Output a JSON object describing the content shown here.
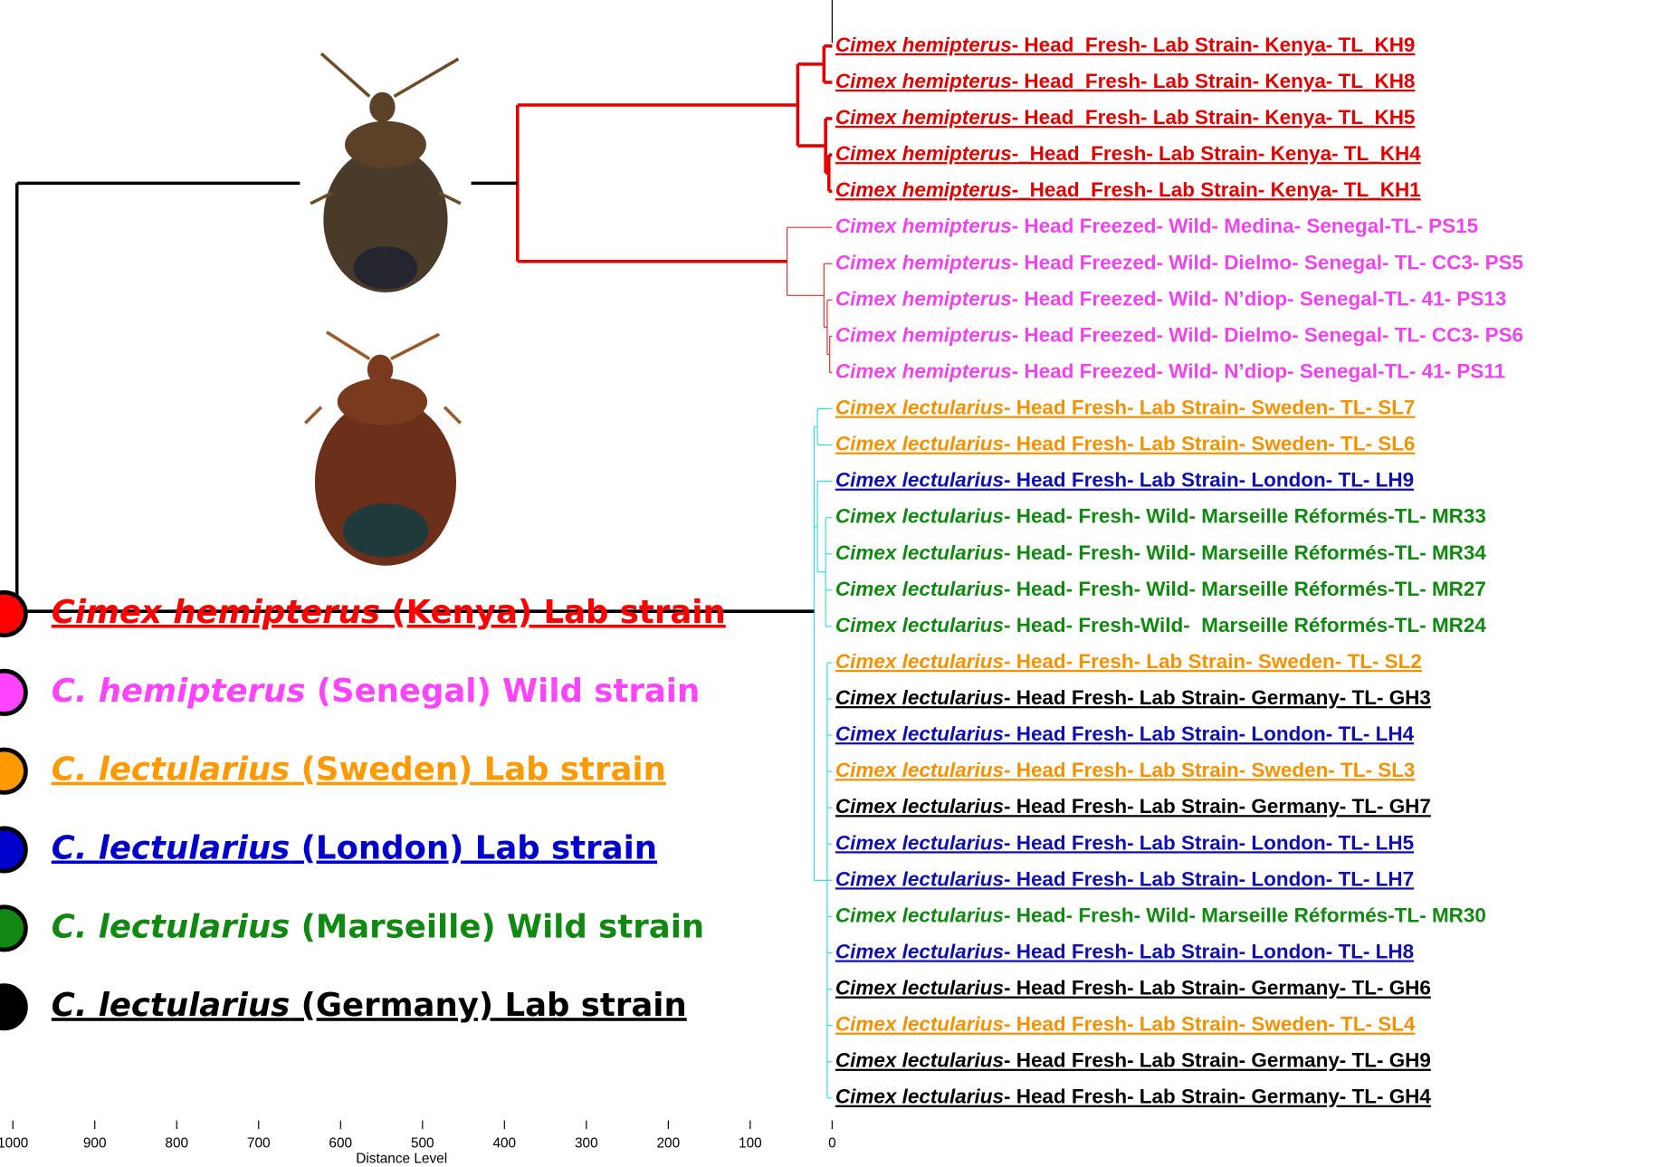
{
  "chart_data": {
    "type": "dendrogram",
    "xlabel": "Distance Level",
    "xlim": [
      1000,
      0
    ],
    "xticks": [
      1000,
      900,
      800,
      700,
      600,
      500,
      400,
      300,
      200,
      100,
      0
    ],
    "leaves": [
      {
        "species": "Cimex hemipterus",
        "rest": "- Head_Fresh- Lab Strain- Kenya- TL_KH9",
        "color": "#e00000",
        "underline": true
      },
      {
        "species": "Cimex hemipterus",
        "rest": "- Head_Fresh- Lab Strain- Kenya- TL_KH8",
        "color": "#e00000",
        "underline": true
      },
      {
        "species": "Cimex hemipterus",
        "rest": "- Head_Fresh- Lab Strain- Kenya- TL_KH5",
        "color": "#e00000",
        "underline": true
      },
      {
        "species": "Cimex hemipterus",
        "rest": "-_Head_Fresh- Lab Strain- Kenya- TL_KH4",
        "color": "#e00000",
        "underline": true
      },
      {
        "species": "Cimex hemipterus",
        "rest": "-_Head_Fresh- Lab Strain- Kenya- TL_KH1",
        "color": "#e00000",
        "underline": true
      },
      {
        "species": "Cimex hemipterus",
        "rest": "- Head Freezed- Wild- Medina- Senegal-TL- PS15",
        "color": "#ee44ee",
        "underline": false
      },
      {
        "species": "Cimex hemipterus",
        "rest": "- Head Freezed- Wild- Dielmo- Senegal- TL- CC3- PS5",
        "color": "#ee44ee",
        "underline": false
      },
      {
        "species": "Cimex hemipterus",
        "rest": "- Head Freezed- Wild- N’diop- Senegal-TL- 41- PS13",
        "color": "#ee44ee",
        "underline": false
      },
      {
        "species": "Cimex hemipterus",
        "rest": "- Head Freezed- Wild- Dielmo- Senegal- TL- CC3- PS6",
        "color": "#ee44ee",
        "underline": false
      },
      {
        "species": "Cimex hemipterus",
        "rest": "- Head Freezed- Wild- N’diop- Senegal-TL- 41- PS11",
        "color": "#ee44ee",
        "underline": false
      },
      {
        "species": "Cimex lectularius",
        "rest": "- Head Fresh- Lab Strain- Sweden- TL- SL7",
        "color": "#f39200",
        "underline": true
      },
      {
        "species": "Cimex lectularius",
        "rest": "- Head Fresh- Lab Strain- Sweden- TL- SL6",
        "color": "#f39200",
        "underline": true
      },
      {
        "species": "Cimex lectularius",
        "rest": "- Head Fresh- Lab Strain- London- TL- LH9",
        "color": "#1010b0",
        "underline": true
      },
      {
        "species": "Cimex lectularius",
        "rest": "- Head- Fresh- Wild- Marseille Réformés-TL- MR33",
        "color": "#118811",
        "underline": false
      },
      {
        "species": "Cimex lectularius",
        "rest": "- Head- Fresh- Wild- Marseille Réformés-TL- MR34",
        "color": "#118811",
        "underline": false
      },
      {
        "species": "Cimex lectularius",
        "rest": "- Head- Fresh- Wild- Marseille Réformés-TL- MR27",
        "color": "#118811",
        "underline": false
      },
      {
        "species": "Cimex lectularius",
        "rest": "- Head- Fresh-Wild-  Marseille Réformés-TL- MR24",
        "color": "#118811",
        "underline": false
      },
      {
        "species": "Cimex lectularius",
        "rest": "- Head- Fresh- Lab Strain- Sweden- TL- SL2",
        "color": "#f39200",
        "underline": true
      },
      {
        "species": "Cimex lectularius",
        "rest": "- Head Fresh- Lab Strain- Germany- TL- GH3",
        "color": "#000000",
        "underline": true
      },
      {
        "species": "Cimex lectularius",
        "rest": "- Head Fresh- Lab Strain- London- TL- LH4",
        "color": "#1010b0",
        "underline": true
      },
      {
        "species": "Cimex lectularius",
        "rest": "- Head Fresh- Lab Strain- Sweden- TL- SL3",
        "color": "#f39200",
        "underline": true
      },
      {
        "species": "Cimex lectularius",
        "rest": "- Head Fresh- Lab Strain- Germany- TL- GH7",
        "color": "#000000",
        "underline": true
      },
      {
        "species": "Cimex lectularius",
        "rest": "- Head Fresh- Lab Strain- London- TL- LH5",
        "color": "#1010b0",
        "underline": true
      },
      {
        "species": "Cimex lectularius",
        "rest": "- Head Fresh- Lab Strain- London- TL- LH7",
        "color": "#1010b0",
        "underline": true
      },
      {
        "species": "Cimex lectularius",
        "rest": "- Head- Fresh- Wild- Marseille Réformés-TL- MR30",
        "color": "#118811",
        "underline": false
      },
      {
        "species": "Cimex lectularius",
        "rest": "- Head Fresh- Lab Strain- London- TL- LH8",
        "color": "#1010b0",
        "underline": true
      },
      {
        "species": "Cimex lectularius",
        "rest": "- Head Fresh- Lab Strain- Germany- TL- GH6",
        "color": "#000000",
        "underline": true
      },
      {
        "species": "Cimex lectularius",
        "rest": "- Head Fresh- Lab Strain- Sweden- TL- SL4",
        "color": "#f39200",
        "underline": true
      },
      {
        "species": "Cimex lectularius",
        "rest": "- Head Fresh- Lab Strain- Germany- TL- GH9",
        "color": "#000000",
        "underline": true
      },
      {
        "species": "Cimex lectularius",
        "rest": "- Head Fresh- Lab Strain- Germany- TL- GH4",
        "color": "#000000",
        "underline": true
      }
    ],
    "tree": {
      "height": 995,
      "color": "#000000",
      "bold": true,
      "children": [
        {
          "height": 384,
          "color": "#e00000",
          "bold": true,
          "children": [
            {
              "height": 42,
              "color": "#e00000",
              "bold": true,
              "children": [
                {
                  "height": 10,
                  "color": "#e00000",
                  "bold": true,
                  "children": [
                    0,
                    1
                  ]
                },
                {
                  "height": 8,
                  "color": "#e00000",
                  "bold": true,
                  "children": [
                    2,
                    {
                      "height": 4,
                      "color": "#e00000",
                      "bold": true,
                      "children": [
                        3,
                        4
                      ]
                    }
                  ]
                }
              ]
            },
            {
              "height": 55,
              "color": "#e03030",
              "bold": false,
              "children": [
                5,
                {
                  "height": 10,
                  "color": "#e03030",
                  "bold": false,
                  "children": [
                    6,
                    {
                      "height": 6,
                      "color": "#e03030",
                      "bold": false,
                      "children": [
                        7,
                        {
                          "height": 3,
                          "color": "#e03030",
                          "bold": false,
                          "children": [
                            8,
                            9
                          ]
                        }
                      ]
                    }
                  ]
                }
              ]
            }
          ]
        },
        {
          "height": 22,
          "color": "#33dddd",
          "bold": false,
          "children": [
            {
              "height": 18,
              "color": "#33dddd",
              "bold": false,
              "children": [
                10,
                11
              ]
            },
            {
              "height": 18,
              "color": "#33dddd",
              "bold": false,
              "children": [
                12,
                {
                  "height": 8,
                  "color": "#33dddd",
                  "bold": false,
                  "children": [
                    13,
                    14,
                    15,
                    16
                  ]
                }
              ]
            },
            {
              "height": 6,
              "color": "#33dddd",
              "bold": false,
              "children": [
                17,
                18,
                19,
                20,
                21,
                22,
                23,
                24,
                25,
                26,
                27,
                28,
                29
              ]
            }
          ]
        }
      ]
    },
    "legend": [
      {
        "italic": "Cimex hemipterus",
        "rest": " (Kenya) Lab strain",
        "color": "#ff0000",
        "underline": true
      },
      {
        "italic": "C. hemipterus",
        "rest": " (Senegal) Wild strain",
        "color": "#ff44ff",
        "underline": false
      },
      {
        "italic": "C. lectularius",
        "rest": " (Sweden) Lab strain",
        "color": "#ff9900",
        "underline": true
      },
      {
        "italic": "C. lectularius",
        "rest": " (London) Lab strain",
        "color": "#0000cc",
        "underline": true
      },
      {
        "italic": "C. lectularius",
        "rest": " (Marseille) Wild strain",
        "color": "#118811",
        "underline": false
      },
      {
        "italic": "C. lectularius",
        "rest": " (Germany) Lab strain",
        "color": "#000000",
        "underline": true
      }
    ]
  }
}
